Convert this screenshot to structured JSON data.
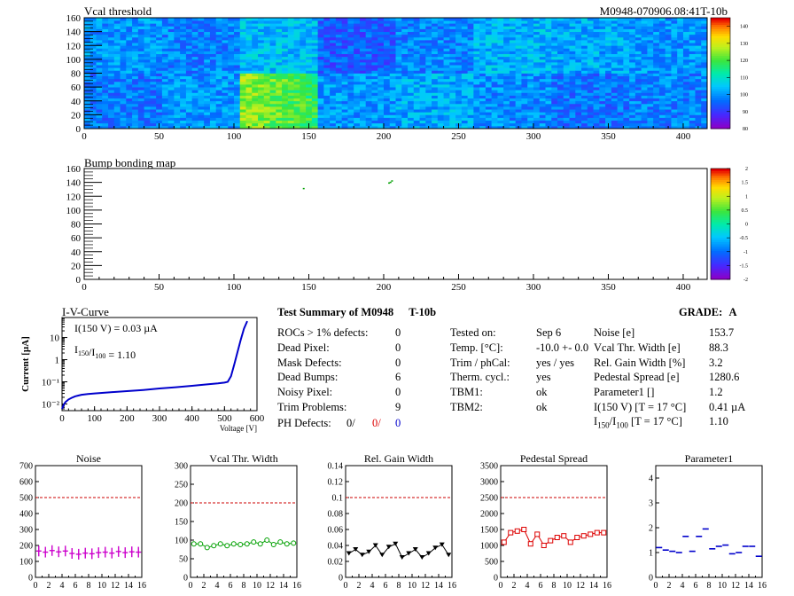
{
  "header": {
    "title": "Vcal threshold",
    "module_id": "M0948-070906.08:41T-10b"
  },
  "chart_data": [
    {
      "id": "vcal",
      "type": "heatmap",
      "title": "Vcal threshold",
      "xlim": [
        0,
        416
      ],
      "ylim": [
        0,
        160
      ],
      "xticks": [
        0,
        50,
        100,
        150,
        200,
        250,
        300,
        350,
        400
      ],
      "yticks": [
        0,
        20,
        40,
        60,
        80,
        100,
        120,
        140,
        160
      ],
      "colorbar": {
        "min": 80,
        "max": 145,
        "ticks": [
          80,
          90,
          100,
          110,
          120,
          130,
          140
        ]
      },
      "roc_mean_levels": {
        "top_row": [
          100,
          98,
          104,
          94,
          98,
          103,
          102,
          100
        ],
        "bottom_row": [
          97,
          100,
          118,
          100,
          102,
          99,
          96,
          98
        ]
      }
    },
    {
      "id": "bump",
      "type": "heatmap",
      "title": "Bump bonding map",
      "xlim": [
        0,
        416
      ],
      "ylim": [
        0,
        160
      ],
      "xticks": [
        0,
        50,
        100,
        150,
        200,
        250,
        300,
        350,
        400
      ],
      "yticks": [
        0,
        20,
        40,
        60,
        80,
        100,
        120,
        140,
        160
      ],
      "colorbar": {
        "min": -2,
        "max": 2,
        "ticks": [
          2,
          1.5,
          1,
          0.5,
          0,
          -0.5,
          -1,
          -1.5,
          -2
        ]
      },
      "hits": [
        {
          "x": 146,
          "y": 132
        },
        {
          "x": 204,
          "y": 141
        },
        {
          "x": 205,
          "y": 143
        },
        {
          "x": 203,
          "y": 140
        }
      ]
    },
    {
      "id": "iv",
      "type": "line",
      "title": "I-V-Curve",
      "xlabel": "Voltage [V]",
      "ylabel": "Current [µA]",
      "xlim": [
        0,
        600
      ],
      "ylim_log": [
        0.005,
        80
      ],
      "xticks": [
        0,
        100,
        200,
        300,
        400,
        500,
        600
      ],
      "yticks": [
        0.01,
        0.1,
        1,
        10
      ],
      "ytick_labels": [
        "10⁻²",
        "10⁻¹",
        "1",
        "10"
      ],
      "annotation1": "I(150 V) = 0.03 µA",
      "annotation2_main": "I",
      "annotation2_sub1": "150",
      "annotation2_mid": "/I",
      "annotation2_sub2": "100",
      "annotation2_val": " =  1.10",
      "x": [
        0,
        5,
        10,
        20,
        30,
        40,
        50,
        60,
        80,
        100,
        150,
        200,
        250,
        300,
        350,
        400,
        450,
        480,
        500,
        510,
        520,
        530,
        540,
        550,
        560,
        570
      ],
      "y": [
        0.006,
        0.009,
        0.012,
        0.016,
        0.019,
        0.022,
        0.024,
        0.026,
        0.028,
        0.03,
        0.034,
        0.038,
        0.043,
        0.05,
        0.057,
        0.066,
        0.078,
        0.085,
        0.092,
        0.1,
        0.18,
        0.6,
        2.2,
        8,
        25,
        55
      ]
    },
    {
      "id": "noise",
      "type": "scatter",
      "title": "Noise",
      "xlim": [
        0,
        16
      ],
      "ylim": [
        0,
        700
      ],
      "xticks": [
        0,
        2,
        4,
        6,
        8,
        10,
        12,
        14,
        16
      ],
      "yticks": [
        0,
        100,
        200,
        300,
        400,
        500,
        600,
        700
      ],
      "limit_line": 500,
      "color": "#cc00cc",
      "marker": "plus",
      "connect": false,
      "x": [
        0.5,
        1.5,
        2.5,
        3.5,
        4.5,
        5.5,
        6.5,
        7.5,
        8.5,
        9.5,
        10.5,
        11.5,
        12.5,
        13.5,
        14.5,
        15.5
      ],
      "y": [
        165,
        158,
        168,
        160,
        165,
        150,
        145,
        152,
        148,
        155,
        158,
        152,
        162,
        155,
        160,
        158
      ]
    },
    {
      "id": "vcalw",
      "type": "line",
      "title": "Vcal Thr. Width",
      "xlim": [
        0,
        16
      ],
      "ylim": [
        0,
        300
      ],
      "xticks": [
        0,
        2,
        4,
        6,
        8,
        10,
        12,
        14,
        16
      ],
      "yticks": [
        0,
        50,
        100,
        150,
        200,
        250,
        300
      ],
      "limit_line": 200,
      "color": "#00a000",
      "marker": "circle",
      "connect": true,
      "x": [
        0.5,
        1.5,
        2.5,
        3.5,
        4.5,
        5.5,
        6.5,
        7.5,
        8.5,
        9.5,
        10.5,
        11.5,
        12.5,
        13.5,
        14.5,
        15.5
      ],
      "y": [
        90,
        90,
        80,
        85,
        90,
        85,
        90,
        88,
        90,
        95,
        90,
        100,
        88,
        95,
        90,
        92
      ]
    },
    {
      "id": "gain",
      "type": "line",
      "title": "Rel. Gain Width",
      "xlim": [
        0,
        16
      ],
      "ylim": [
        0,
        0.14
      ],
      "xticks": [
        0,
        2,
        4,
        6,
        8,
        10,
        12,
        14,
        16
      ],
      "yticks": [
        0,
        0.02,
        0.04,
        0.06,
        0.08,
        0.1,
        0.12,
        0.14
      ],
      "limit_line": 0.1,
      "color": "#000000",
      "marker": "triangle",
      "connect": true,
      "x": [
        0.5,
        1.5,
        2.5,
        3.5,
        4.5,
        5.5,
        6.5,
        7.5,
        8.5,
        9.5,
        10.5,
        11.5,
        12.5,
        13.5,
        14.5,
        15.5
      ],
      "y": [
        0.03,
        0.035,
        0.028,
        0.032,
        0.04,
        0.028,
        0.038,
        0.042,
        0.025,
        0.03,
        0.035,
        0.025,
        0.03,
        0.037,
        0.041,
        0.028
      ]
    },
    {
      "id": "ped",
      "type": "line",
      "title": "Pedestal Spread",
      "xlim": [
        0,
        16
      ],
      "ylim": [
        0,
        3500
      ],
      "xticks": [
        0,
        2,
        4,
        6,
        8,
        10,
        12,
        14,
        16
      ],
      "yticks": [
        0,
        500,
        1000,
        1500,
        2000,
        2500,
        3000,
        3500
      ],
      "limit_line": 2500,
      "color": "#dd0000",
      "marker": "square",
      "connect": true,
      "x": [
        0.5,
        1.5,
        2.5,
        3.5,
        4.5,
        5.5,
        6.5,
        7.5,
        8.5,
        9.5,
        10.5,
        11.5,
        12.5,
        13.5,
        14.5,
        15.5
      ],
      "y": [
        1100,
        1400,
        1450,
        1500,
        1050,
        1350,
        1000,
        1150,
        1250,
        1300,
        1100,
        1250,
        1300,
        1350,
        1400,
        1400
      ]
    },
    {
      "id": "param1",
      "type": "scatter",
      "title": "Parameter1",
      "xlim": [
        0,
        16
      ],
      "ylim": [
        0,
        4.5
      ],
      "xticks": [
        0,
        2,
        4,
        6,
        8,
        10,
        12,
        14,
        16
      ],
      "yticks": [
        0,
        1,
        2,
        3,
        4
      ],
      "color": "#0000cc",
      "marker": "hbar",
      "connect": false,
      "x": [
        0.5,
        1.5,
        2.5,
        3.5,
        4.5,
        5.5,
        6.5,
        7.5,
        8.5,
        9.5,
        10.5,
        11.5,
        12.5,
        13.5,
        14.5,
        15.5
      ],
      "y": [
        1.2,
        1.1,
        1.05,
        1.0,
        1.65,
        1.05,
        1.65,
        1.95,
        1.15,
        1.25,
        1.3,
        0.95,
        1.0,
        1.25,
        1.25,
        0.85
      ]
    }
  ],
  "summary": {
    "title": "Test Summary of M0948",
    "tag": "T-10b",
    "grade_label": "GRADE:",
    "grade_value": "A",
    "defects": [
      {
        "label": "ROCs > 1% defects:",
        "value": "0"
      },
      {
        "label": "Dead Pixel:",
        "value": "0"
      },
      {
        "label": "Mask Defects:",
        "value": "0"
      },
      {
        "label": "Dead Bumps:",
        "value": "6"
      },
      {
        "label": "Noisy Pixel:",
        "value": "0"
      },
      {
        "label": "Trim Problems:",
        "value": "9"
      }
    ],
    "ph_label": "PH Defects:",
    "ph_values": [
      "0/",
      "0/",
      "0"
    ],
    "ph_colors": [
      "#000000",
      "#dd0000",
      "#0000cc"
    ],
    "conditions": [
      {
        "label": "Tested on:",
        "value": "Sep 6"
      },
      {
        "label": "Temp. [°C]:",
        "value": "-10.0 +- 0.0"
      },
      {
        "label": "Trim / phCal:",
        "value": "yes / yes"
      },
      {
        "label": "Therm. cycl.:",
        "value": "yes"
      },
      {
        "label": "TBM1:",
        "value": "ok"
      },
      {
        "label": "TBM2:",
        "value": "ok"
      }
    ],
    "results": [
      {
        "label": "Noise [e]",
        "value": "153.7"
      },
      {
        "label": "Vcal Thr. Width [e]",
        "value": "88.3"
      },
      {
        "label": "Rel. Gain Width [%]",
        "value": "3.2"
      },
      {
        "label": "Pedestal Spread [e]",
        "value": "1280.6"
      },
      {
        "label": "Parameter1 []",
        "value": "1.2"
      },
      {
        "label": "I(150 V) [T = 17 °C]",
        "value": "0.41 µA"
      }
    ],
    "ratio_label_main": "I",
    "ratio_sub1": "150",
    "ratio_mid": "/I",
    "ratio_sub2": "100",
    "ratio_rest": "  [T = 17 °C]",
    "ratio_value": "1.10"
  }
}
